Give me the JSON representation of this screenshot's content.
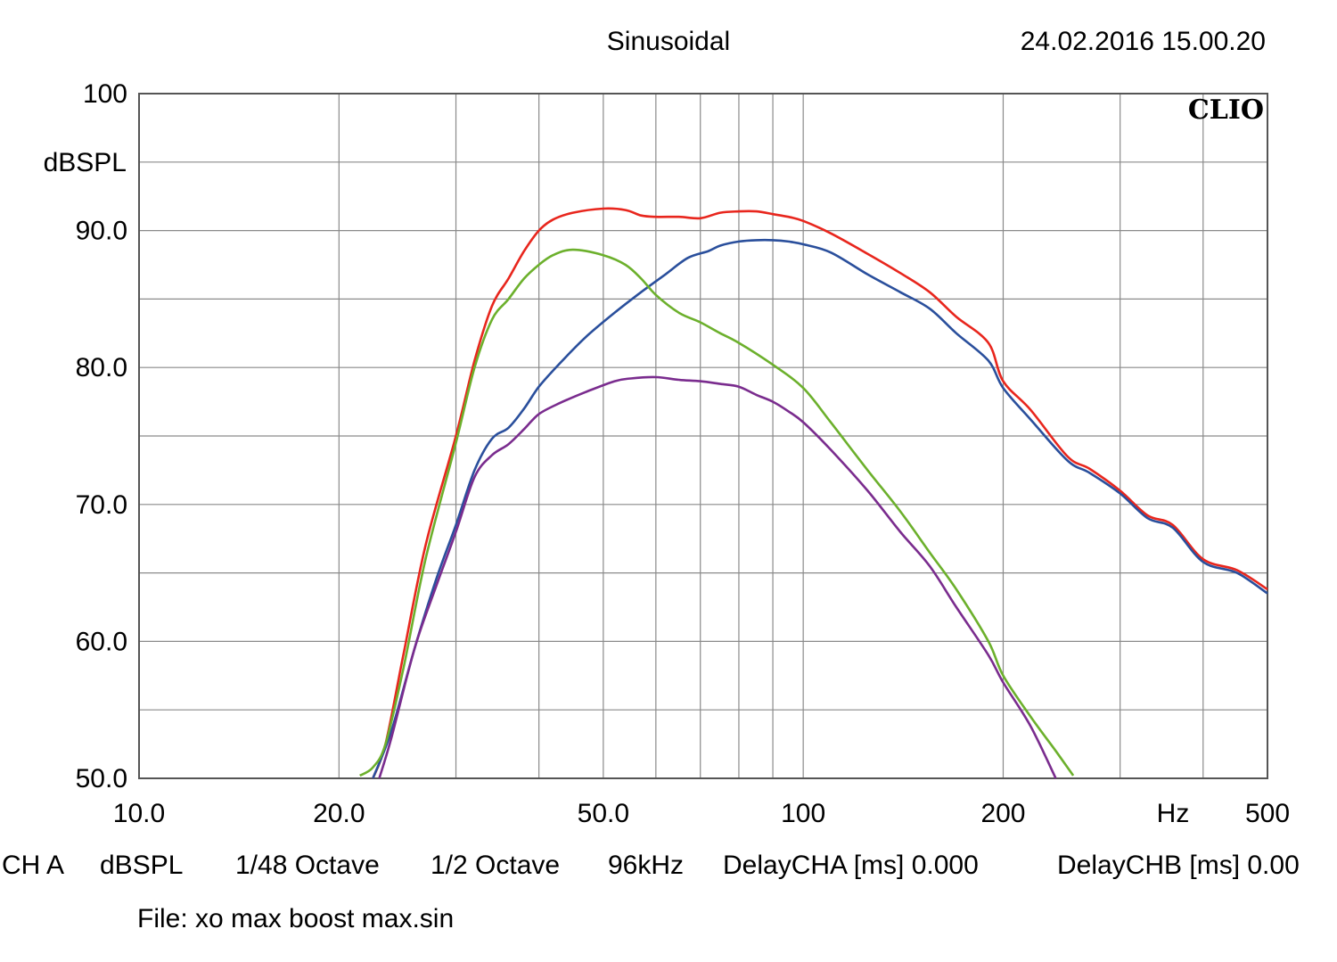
{
  "header": {
    "title": "Sinusoidal",
    "timestamp": "24.02.2016 15.00.20",
    "brand": "CLIO"
  },
  "footer": {
    "items": [
      "CH A",
      "dBSPL",
      "1/48 Octave",
      "1/2 Octave",
      "96kHz",
      "DelayCHA [ms] 0.000",
      "DelayCHB [ms] 0.00"
    ],
    "file": "File: xo max boost max.sin"
  },
  "chart_data": {
    "type": "line",
    "title": "",
    "xlabel": "Hz",
    "ylabel": "dBSPL",
    "x_scale": "log",
    "xlim": [
      10,
      500
    ],
    "ylim": [
      50,
      100
    ],
    "grid": true,
    "x_ticks": [
      10,
      20,
      50,
      100,
      200,
      500
    ],
    "x_tick_labels": [
      "10.0",
      "20.0",
      "50.0",
      "100",
      "200",
      "500"
    ],
    "y_ticks": [
      50,
      60,
      70,
      80,
      90,
      100
    ],
    "y_tick_labels": [
      "50.0",
      "60.0",
      "70.0",
      "80.0",
      "90.0",
      "100"
    ],
    "series": [
      {
        "color": "#e8261d",
        "x": [
          22.5,
          23.5,
          25,
          27,
          30,
          32,
          34,
          36,
          38,
          40,
          42,
          45,
          50,
          54,
          57,
          60,
          65,
          70,
          75,
          80,
          85,
          90,
          95,
          100,
          110,
          125,
          140,
          155,
          170,
          190,
          200,
          220,
          250,
          270,
          300,
          330,
          360,
          400,
          450,
          500
        ],
        "y": [
          50,
          52.5,
          59,
          67,
          75,
          80.5,
          84.5,
          86.5,
          88.5,
          90,
          90.8,
          91.3,
          91.6,
          91.5,
          91.1,
          91.0,
          91.0,
          90.9,
          91.3,
          91.4,
          91.4,
          91.2,
          91.0,
          90.7,
          89.8,
          88.3,
          86.9,
          85.5,
          83.7,
          81.8,
          79.0,
          76.9,
          73.5,
          72.6,
          71.0,
          69.2,
          68.5,
          66.0,
          65.2,
          63.8
        ]
      },
      {
        "color": "#2a4f9c",
        "x": [
          22.5,
          24,
          26,
          28,
          30,
          32,
          34,
          36,
          38,
          40,
          43,
          47,
          52,
          57,
          62,
          67,
          72,
          75,
          80,
          85,
          90,
          95,
          100,
          110,
          125,
          140,
          155,
          170,
          190,
          200,
          220,
          250,
          270,
          300,
          330,
          360,
          400,
          450,
          500
        ],
        "y": [
          50,
          53.5,
          59.5,
          64.5,
          68.5,
          72.5,
          74.8,
          75.6,
          77,
          78.6,
          80.3,
          82.2,
          84.0,
          85.5,
          86.8,
          88.0,
          88.5,
          88.9,
          89.2,
          89.3,
          89.3,
          89.2,
          89.0,
          88.4,
          86.8,
          85.5,
          84.3,
          82.5,
          80.5,
          78.5,
          76.2,
          73.2,
          72.3,
          70.8,
          69.0,
          68.3,
          65.8,
          65.0,
          63.5
        ]
      },
      {
        "color": "#6cb02c",
        "x": [
          21.5,
          22.5,
          23.5,
          25,
          27,
          30,
          32,
          34,
          36,
          38,
          40,
          42,
          45,
          50,
          54,
          57,
          60,
          65,
          70,
          75,
          80,
          90,
          100,
          110,
          125,
          140,
          155,
          170,
          190,
          200,
          220,
          240,
          255
        ],
        "y": [
          50.2,
          50.8,
          52.5,
          58,
          66,
          74.5,
          80,
          83.5,
          85,
          86.5,
          87.5,
          88.2,
          88.6,
          88.2,
          87.5,
          86.5,
          85.3,
          84.0,
          83.3,
          82.5,
          81.8,
          80.2,
          78.5,
          76.0,
          72.5,
          69.5,
          66.5,
          63.8,
          60.0,
          57.5,
          54.5,
          52.0,
          50.2
        ]
      },
      {
        "color": "#7a2c8e",
        "x": [
          23,
          24,
          26,
          28,
          30,
          32,
          34,
          36,
          38,
          40,
          43,
          47,
          52,
          55,
          60,
          65,
          70,
          75,
          80,
          85,
          90,
          95,
          100,
          110,
          125,
          140,
          155,
          170,
          190,
          200,
          220,
          240
        ],
        "y": [
          50,
          53,
          59.5,
          64,
          68,
          72,
          73.6,
          74.4,
          75.5,
          76.6,
          77.4,
          78.2,
          79.0,
          79.2,
          79.3,
          79.1,
          79.0,
          78.8,
          78.6,
          78.0,
          77.5,
          76.8,
          76.0,
          74.0,
          71.0,
          68.0,
          65.5,
          62.5,
          59.0,
          57.0,
          53.8,
          50.0
        ]
      }
    ]
  }
}
